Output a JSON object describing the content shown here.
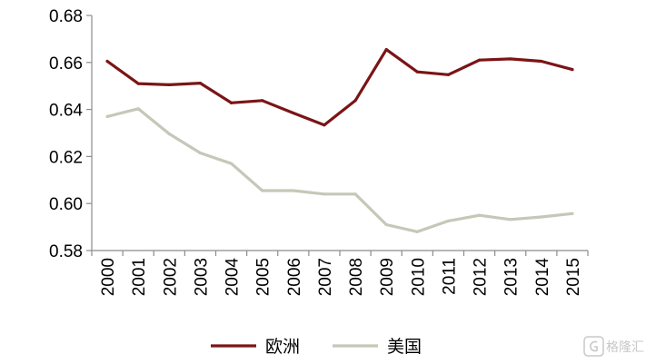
{
  "chart_data": {
    "type": "line",
    "x": [
      "2000",
      "2001",
      "2002",
      "2003",
      "2004",
      "2005",
      "2006",
      "2007",
      "2008",
      "2009",
      "2010",
      "2011",
      "2012",
      "2013",
      "2014",
      "2015"
    ],
    "series": [
      {
        "name": "欧洲",
        "color": "#7b1416",
        "values": [
          0.6605,
          0.651,
          0.6505,
          0.6512,
          0.6428,
          0.6438,
          0.6385,
          0.6334,
          0.6438,
          0.6655,
          0.656,
          0.6548,
          0.661,
          0.6615,
          0.6605,
          0.657
        ]
      },
      {
        "name": "美国",
        "color": "#c4c8b8",
        "values": [
          0.637,
          0.6403,
          0.6296,
          0.6215,
          0.617,
          0.6055,
          0.6055,
          0.604,
          0.604,
          0.591,
          0.588,
          0.5926,
          0.595,
          0.5932,
          0.5943,
          0.5957
        ]
      }
    ],
    "ylim": [
      0.58,
      0.68
    ],
    "yticks": [
      "0.58",
      "0.60",
      "0.62",
      "0.64",
      "0.66",
      "0.68"
    ],
    "grid": false,
    "legend_position": "bottom"
  },
  "watermark": {
    "text": "格隆汇",
    "icon": "gelonghui-logo-icon"
  }
}
